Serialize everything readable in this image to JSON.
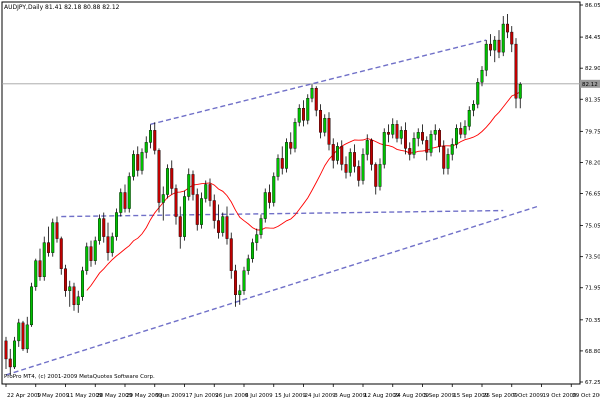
{
  "chart_data": {
    "type": "candlestick",
    "header": "AUDJPY,Daily  81.41 82.18 80.88 82.12",
    "footer": "ProPro MT4, (c) 2001-2009 MetaQuotes Software Corp.",
    "current_price": 82.12,
    "ylim": [
      67.15,
      86.2
    ],
    "yticks": [
      86.05,
      84.45,
      82.9,
      81.35,
      79.75,
      78.2,
      76.65,
      75.05,
      73.5,
      71.95,
      70.35,
      68.8,
      67.25
    ],
    "xticks": [
      {
        "label": "22 Apr 2009",
        "i": 0
      },
      {
        "label": "1 May 2009",
        "i": 7
      },
      {
        "label": "11 May 2009",
        "i": 14
      },
      {
        "label": "20 May 2009",
        "i": 21
      },
      {
        "label": "29 May 2009",
        "i": 28
      },
      {
        "label": "9 Jun 2009",
        "i": 35
      },
      {
        "label": "17 Jun 2009",
        "i": 42
      },
      {
        "label": "26 Jun 2009",
        "i": 49
      },
      {
        "label": "6 Jul 2009",
        "i": 56
      },
      {
        "label": "15 Jul 2009",
        "i": 63
      },
      {
        "label": "24 Jul 2009",
        "i": 70
      },
      {
        "label": "3 Aug 2009",
        "i": 77
      },
      {
        "label": "12 Aug 2009",
        "i": 84
      },
      {
        "label": "24 Aug 2009",
        "i": 91
      },
      {
        "label": "3 Sep 2009",
        "i": 98
      },
      {
        "label": "15 Sep 2009",
        "i": 105
      },
      {
        "label": "25 Sep 2009",
        "i": 112
      },
      {
        "label": "7 Oct 2009",
        "i": 119
      },
      {
        "label": "19 Oct 2009",
        "i": 126
      },
      {
        "label": "29 Oct 2009",
        "i": 133
      }
    ],
    "colors": {
      "up": "#00c000",
      "down": "#c00000",
      "ma": "#ff0000",
      "trend": "#7070c8",
      "hline": "#a0a0a0"
    },
    "candles": [
      [
        69.3,
        69.5,
        67.9,
        68.4
      ],
      [
        68.4,
        68.9,
        67.6,
        68.0
      ],
      [
        68.0,
        69.5,
        67.9,
        69.3
      ],
      [
        69.3,
        70.4,
        69.0,
        70.2
      ],
      [
        70.2,
        70.3,
        68.8,
        68.9
      ],
      [
        68.9,
        70.5,
        68.7,
        70.1
      ],
      [
        70.1,
        72.2,
        70.0,
        72.0
      ],
      [
        72.0,
        73.4,
        71.8,
        73.3
      ],
      [
        73.3,
        73.9,
        72.3,
        72.5
      ],
      [
        72.5,
        74.5,
        72.3,
        74.2
      ],
      [
        74.2,
        75.0,
        73.5,
        73.7
      ],
      [
        73.7,
        75.4,
        73.5,
        75.2
      ],
      [
        75.2,
        75.5,
        74.2,
        74.4
      ],
      [
        74.4,
        74.5,
        72.6,
        72.9
      ],
      [
        72.9,
        73.1,
        71.5,
        71.8
      ],
      [
        71.8,
        72.3,
        71.0,
        72.0
      ],
      [
        72.0,
        72.2,
        70.8,
        71.1
      ],
      [
        71.1,
        71.8,
        70.7,
        71.5
      ],
      [
        71.5,
        73.0,
        71.3,
        72.8
      ],
      [
        72.8,
        74.2,
        72.6,
        74.0
      ],
      [
        74.0,
        74.3,
        73.0,
        73.3
      ],
      [
        73.3,
        74.5,
        73.1,
        74.3
      ],
      [
        74.3,
        75.6,
        74.1,
        75.4
      ],
      [
        75.4,
        75.7,
        74.2,
        74.5
      ],
      [
        74.5,
        75.2,
        73.3,
        73.7
      ],
      [
        73.7,
        74.7,
        73.5,
        74.5
      ],
      [
        74.5,
        75.9,
        74.3,
        75.7
      ],
      [
        75.7,
        76.9,
        75.5,
        76.7
      ],
      [
        76.7,
        77.1,
        75.7,
        75.9
      ],
      [
        75.9,
        77.7,
        75.7,
        77.5
      ],
      [
        77.5,
        78.8,
        77.3,
        78.6
      ],
      [
        78.6,
        79.0,
        77.5,
        77.8
      ],
      [
        77.8,
        78.9,
        77.6,
        78.7
      ],
      [
        78.7,
        79.5,
        78.4,
        79.2
      ],
      [
        79.2,
        80.1,
        78.9,
        79.8
      ],
      [
        79.8,
        80.2,
        78.6,
        78.8
      ],
      [
        78.8,
        78.9,
        75.7,
        76.2
      ],
      [
        76.2,
        77.0,
        75.3,
        76.6
      ],
      [
        76.6,
        78.1,
        76.4,
        77.9
      ],
      [
        77.9,
        78.3,
        76.6,
        76.9
      ],
      [
        76.9,
        77.1,
        75.1,
        75.5
      ],
      [
        75.5,
        76.0,
        73.9,
        74.5
      ],
      [
        74.5,
        76.8,
        74.3,
        76.5
      ],
      [
        76.5,
        77.9,
        76.3,
        77.6
      ],
      [
        77.6,
        77.8,
        76.3,
        76.6
      ],
      [
        76.6,
        76.9,
        74.8,
        75.1
      ],
      [
        75.1,
        76.7,
        74.9,
        76.4
      ],
      [
        76.4,
        77.3,
        76.2,
        77.1
      ],
      [
        77.1,
        77.4,
        76.0,
        76.3
      ],
      [
        76.3,
        76.6,
        74.9,
        75.3
      ],
      [
        75.3,
        76.1,
        74.4,
        74.7
      ],
      [
        74.7,
        75.7,
        74.5,
        75.5
      ],
      [
        75.5,
        76.0,
        74.1,
        74.4
      ],
      [
        74.4,
        74.7,
        72.4,
        72.8
      ],
      [
        72.8,
        73.1,
        71.0,
        71.6
      ],
      [
        71.6,
        72.1,
        71.1,
        71.8
      ],
      [
        71.8,
        73.0,
        71.6,
        72.8
      ],
      [
        72.8,
        73.6,
        72.6,
        73.4
      ],
      [
        73.4,
        74.4,
        73.2,
        74.2
      ],
      [
        74.2,
        74.9,
        73.8,
        74.6
      ],
      [
        74.6,
        75.6,
        74.4,
        75.4
      ],
      [
        75.4,
        76.9,
        75.2,
        76.7
      ],
      [
        76.7,
        77.1,
        75.9,
        76.2
      ],
      [
        76.2,
        77.7,
        76.0,
        77.5
      ],
      [
        77.5,
        78.6,
        77.3,
        78.4
      ],
      [
        78.4,
        79.0,
        77.6,
        77.9
      ],
      [
        77.9,
        79.4,
        77.7,
        79.2
      ],
      [
        79.2,
        79.7,
        78.6,
        78.9
      ],
      [
        78.9,
        80.4,
        78.7,
        80.2
      ],
      [
        80.2,
        81.1,
        80.0,
        80.9
      ],
      [
        80.9,
        81.3,
        80.0,
        80.3
      ],
      [
        80.3,
        81.6,
        80.1,
        81.4
      ],
      [
        81.4,
        82.1,
        81.2,
        81.9
      ],
      [
        81.9,
        82.0,
        80.5,
        80.8
      ],
      [
        80.8,
        81.1,
        79.4,
        79.7
      ],
      [
        79.7,
        80.6,
        79.5,
        80.4
      ],
      [
        80.4,
        80.7,
        78.8,
        79.1
      ],
      [
        79.1,
        79.4,
        77.9,
        78.3
      ],
      [
        78.3,
        79.2,
        78.1,
        79.0
      ],
      [
        79.0,
        79.3,
        77.8,
        78.1
      ],
      [
        78.1,
        78.5,
        77.4,
        77.7
      ],
      [
        77.7,
        78.9,
        77.5,
        78.7
      ],
      [
        78.7,
        79.1,
        77.7,
        78.0
      ],
      [
        78.0,
        78.3,
        77.0,
        77.3
      ],
      [
        77.3,
        78.9,
        77.1,
        78.6
      ],
      [
        78.6,
        79.6,
        78.3,
        79.3
      ],
      [
        79.3,
        79.4,
        77.8,
        78.1
      ],
      [
        78.1,
        78.2,
        76.6,
        77.0
      ],
      [
        77.0,
        78.4,
        76.8,
        78.1
      ],
      [
        78.1,
        79.9,
        77.9,
        79.7
      ],
      [
        79.7,
        80.1,
        79.2,
        79.6
      ],
      [
        79.6,
        80.4,
        79.4,
        80.1
      ],
      [
        80.1,
        80.3,
        79.2,
        79.4
      ],
      [
        79.4,
        80.0,
        79.1,
        79.8
      ],
      [
        79.8,
        80.2,
        78.6,
        78.9
      ],
      [
        78.9,
        79.2,
        78.3,
        78.6
      ],
      [
        78.6,
        79.7,
        78.4,
        79.4
      ],
      [
        79.4,
        79.9,
        79.0,
        79.7
      ],
      [
        79.7,
        80.1,
        79.1,
        79.3
      ],
      [
        79.3,
        79.5,
        78.3,
        78.7
      ],
      [
        78.7,
        79.8,
        78.5,
        79.6
      ],
      [
        79.6,
        80.1,
        79.3,
        79.8
      ],
      [
        79.8,
        79.9,
        78.7,
        79.0
      ],
      [
        79.0,
        79.3,
        77.6,
        77.9
      ],
      [
        77.9,
        78.9,
        77.6,
        78.6
      ],
      [
        78.6,
        79.4,
        78.3,
        79.1
      ],
      [
        79.1,
        80.1,
        78.9,
        79.9
      ],
      [
        79.9,
        80.2,
        79.4,
        79.6
      ],
      [
        79.6,
        80.3,
        79.4,
        80.0
      ],
      [
        80.0,
        81.0,
        79.8,
        80.8
      ],
      [
        80.8,
        81.3,
        80.5,
        81.1
      ],
      [
        81.1,
        82.4,
        80.9,
        82.2
      ],
      [
        82.2,
        83.0,
        82.0,
        82.8
      ],
      [
        82.8,
        84.3,
        82.5,
        84.1
      ],
      [
        84.1,
        84.6,
        83.5,
        83.8
      ],
      [
        83.8,
        84.5,
        83.2,
        84.3
      ],
      [
        84.3,
        84.8,
        83.4,
        83.7
      ],
      [
        83.7,
        85.5,
        83.5,
        85.1
      ],
      [
        85.1,
        85.6,
        84.4,
        84.7
      ],
      [
        84.7,
        85.0,
        83.7,
        84.1
      ],
      [
        84.1,
        84.4,
        80.9,
        81.4
      ],
      [
        81.4,
        82.2,
        80.9,
        82.1
      ]
    ]
  }
}
